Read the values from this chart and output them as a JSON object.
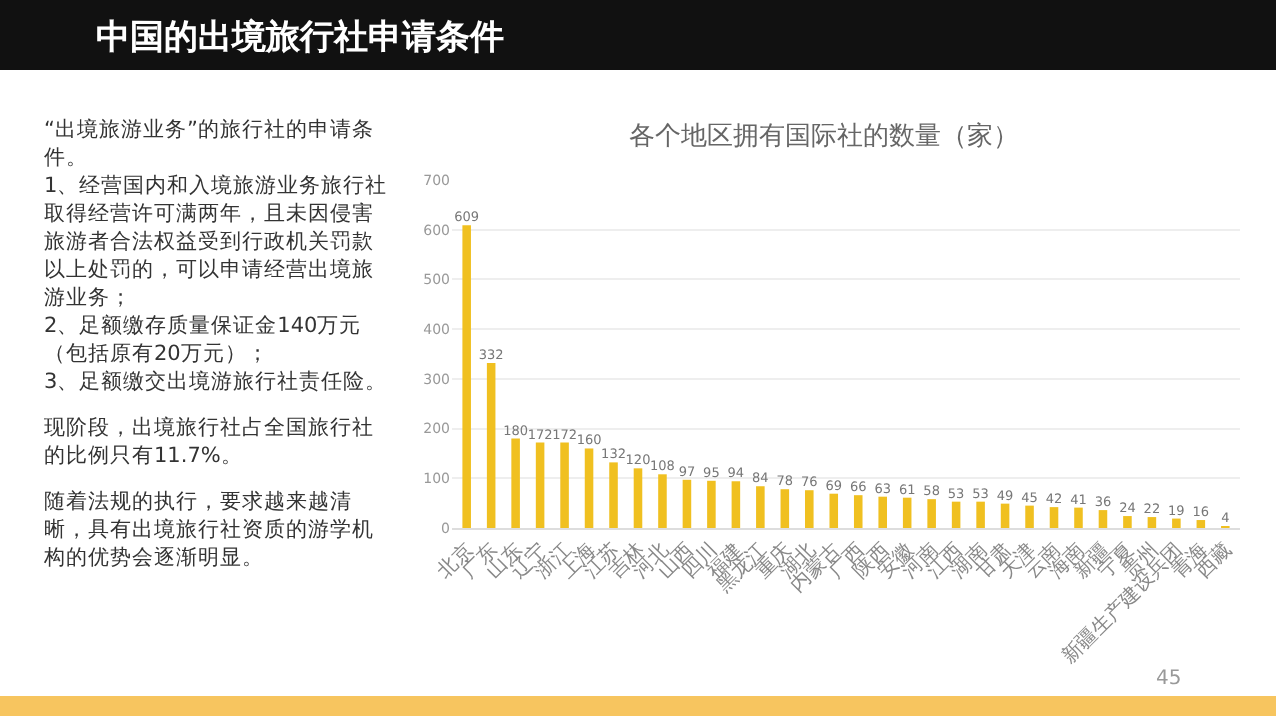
{
  "chart_data": {
    "type": "bar",
    "title": "中国的出境旅行社申请条件",
    "subtitle": "各个地区拥有国际社的数量（家）",
    "categories": [
      "北京",
      "广东",
      "山东",
      "辽宁",
      "浙江",
      "上海",
      "江苏",
      "吉林",
      "河北",
      "山西",
      "四川",
      "福建",
      "黑龙江",
      "重庆",
      "湖北",
      "内蒙古",
      "广西",
      "陕西",
      "安徽",
      "河南",
      "江西",
      "湖南",
      "甘肃",
      "天津",
      "云南",
      "海南",
      "新疆",
      "宁夏",
      "贵州",
      "新疆生产建设兵团",
      "青海",
      "西藏"
    ],
    "values": [
      609,
      332,
      180,
      172,
      172,
      160,
      132,
      120,
      108,
      97,
      95,
      94,
      84,
      78,
      76,
      69,
      66,
      63,
      61,
      58,
      53,
      53,
      49,
      45,
      42,
      41,
      36,
      24,
      22,
      19,
      16,
      4
    ],
    "color": "#f0c020",
    "ylim": [
      0,
      700
    ],
    "yticks": [
      0,
      100,
      200,
      300,
      400,
      500,
      600,
      700
    ],
    "grid": "y",
    "data_labels": true,
    "annotations": [
      "“出境旅游业务”的旅行社的申请条件。\n1、经营国内和入境旅游业务旅行社取得经营许可满两年，且未因侵害旅游者合法权益受到行政机关罚款以上处罚的，可以申请经营出境旅游业务；\n2、足额缴存质量保证金140万元（包括原有20万元）；\n3、足额缴交出境游旅行社责任险。",
      "现阶段，出境旅行社占全国旅行社的比例只有11.7%。",
      "随着法规的执行，要求越来越清晰，具有出境旅行社资质的游学机构的优势会逐渐明显。",
      "45"
    ]
  }
}
